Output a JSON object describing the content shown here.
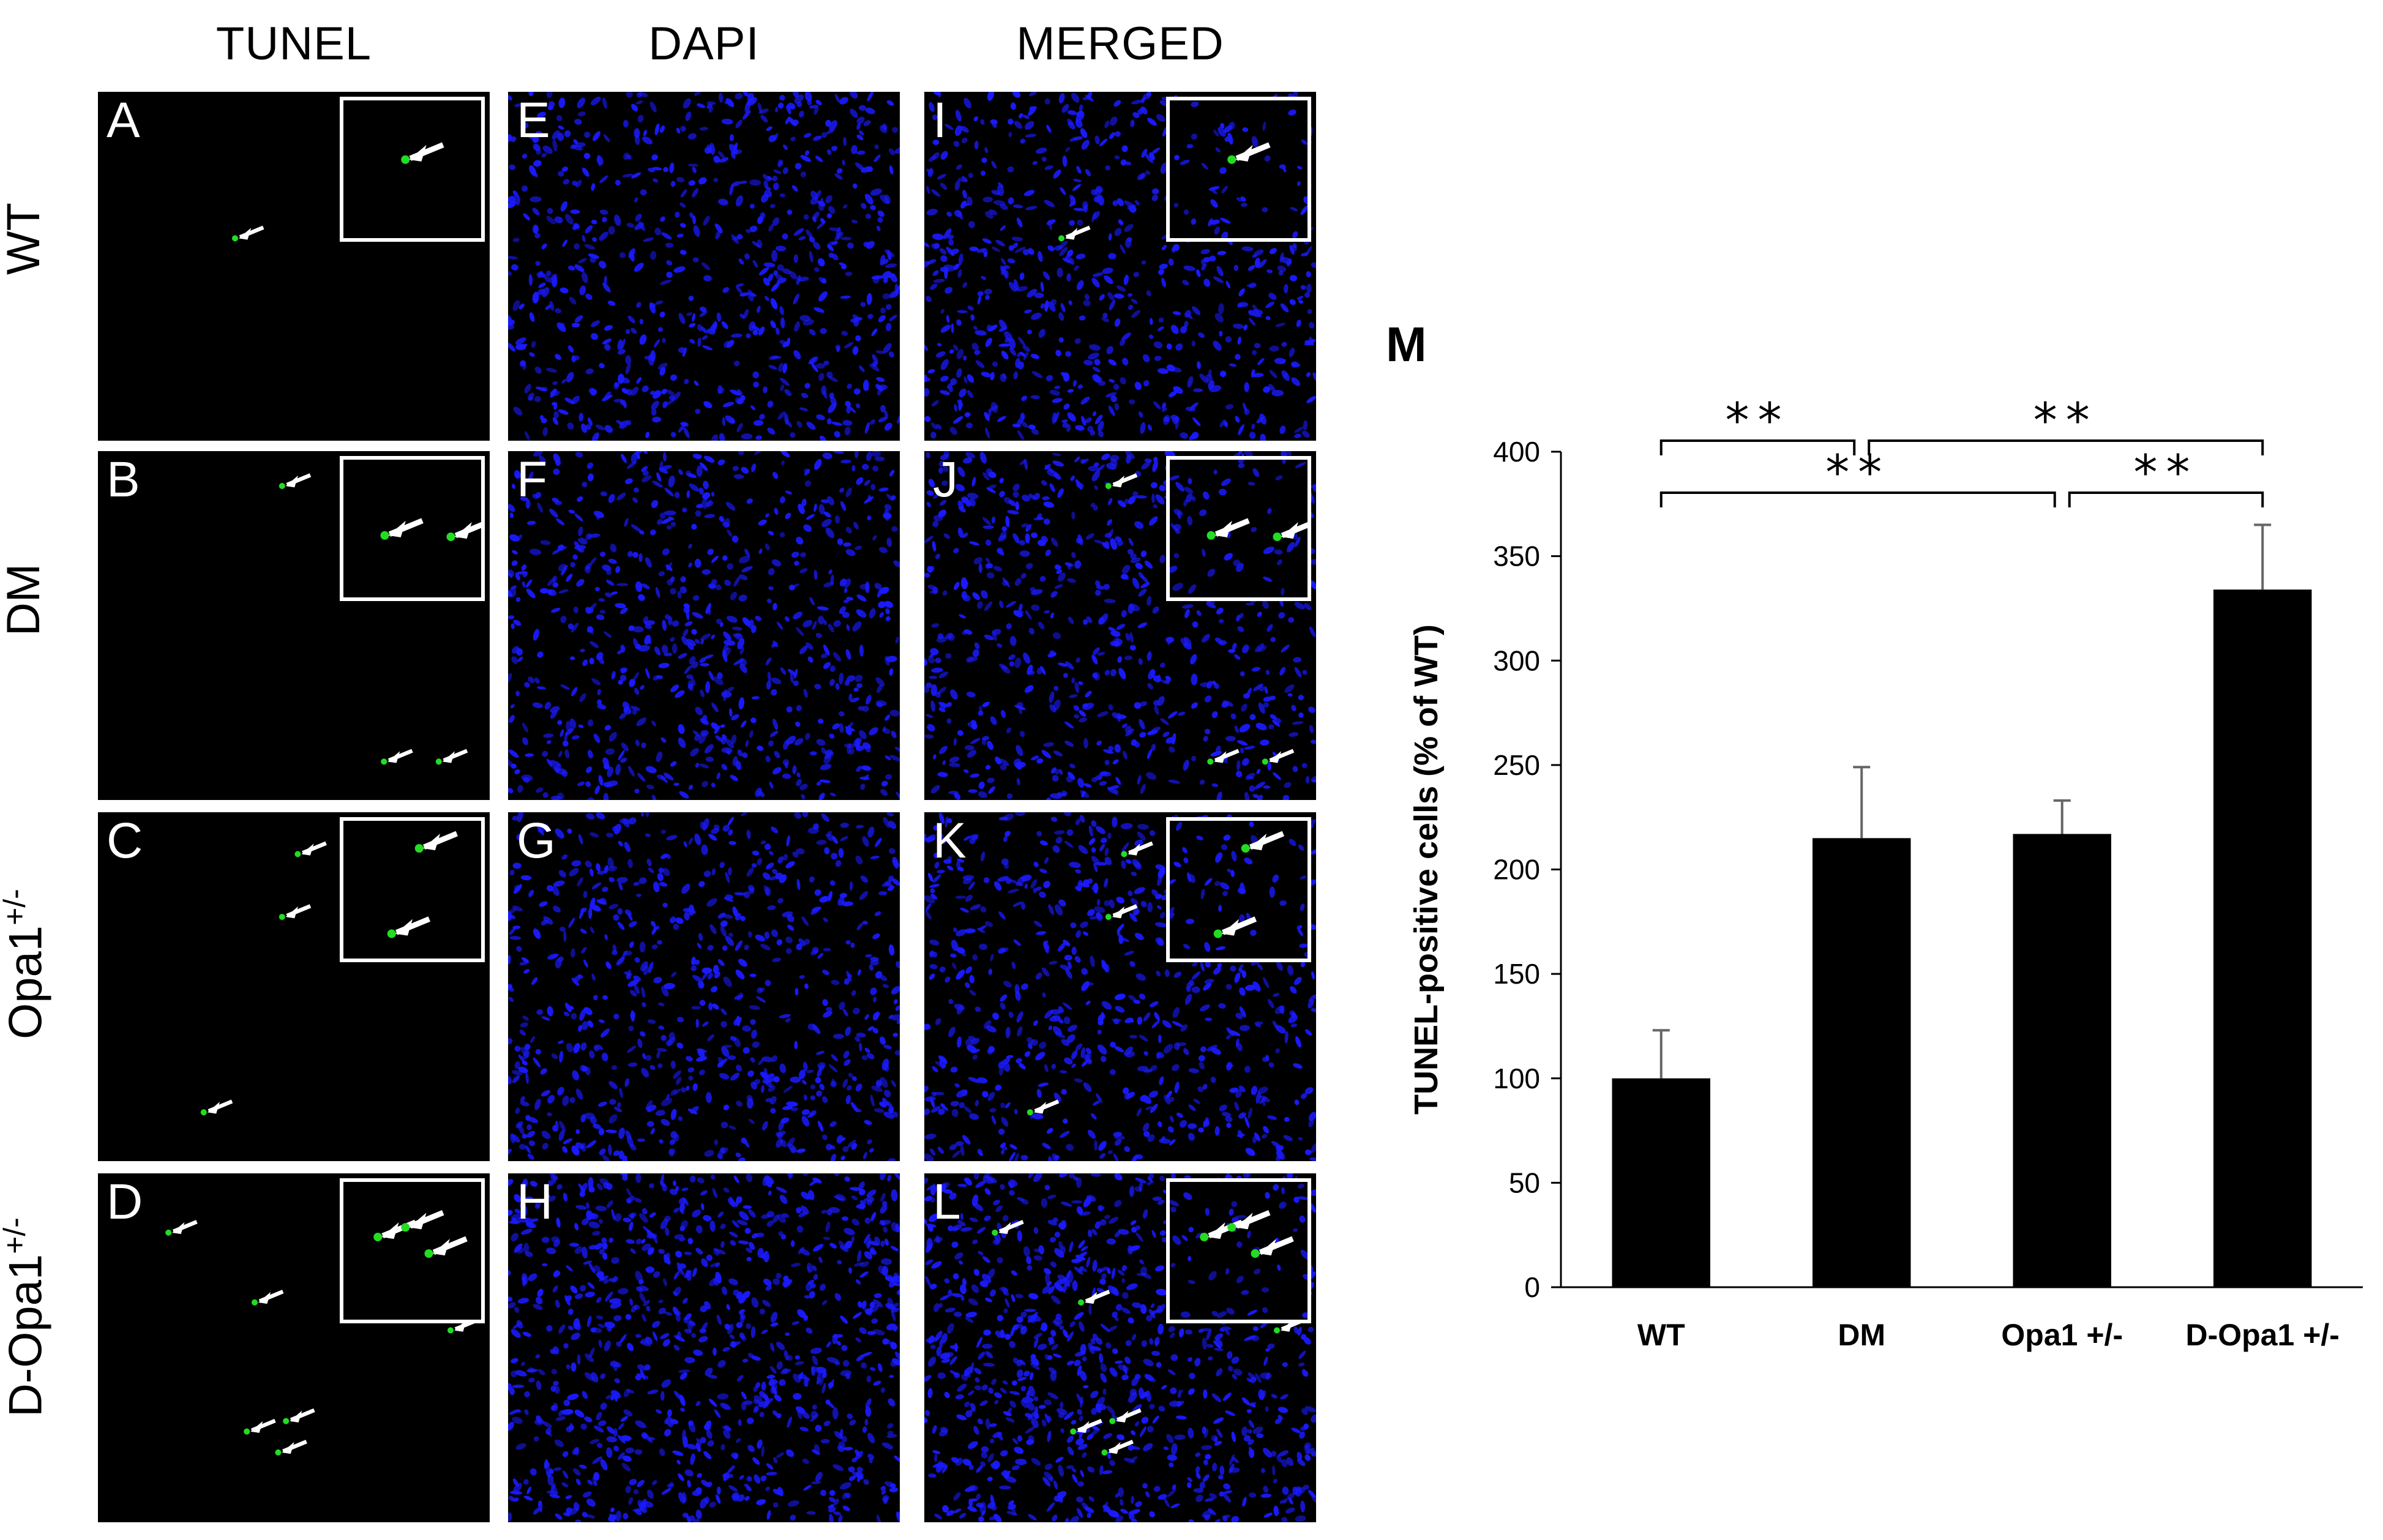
{
  "columns": [
    "TUNEL",
    "DAPI",
    "MERGED"
  ],
  "rows": [
    {
      "label": "WT",
      "sup": ""
    },
    {
      "label": "DM",
      "sup": ""
    },
    {
      "label": "Opa1",
      "sup": "+/-"
    },
    {
      "label": "D-Opa1",
      "sup": "+/-"
    }
  ],
  "panel_letters": [
    "A",
    "E",
    "I",
    "B",
    "F",
    "J",
    "C",
    "G",
    "K",
    "D",
    "H",
    "L"
  ],
  "colors": {
    "dapi": "#1a1aff",
    "tunel": "#22dd22",
    "background": "#000000",
    "arrow": "#ffffff",
    "bar": "#000000"
  },
  "chart_data": {
    "panel_label": "M",
    "type": "bar",
    "categories": [
      "WT",
      "DM",
      "Opa1 +/-",
      "D-Opa1 +/-"
    ],
    "values": [
      100,
      215,
      217,
      334
    ],
    "errors": [
      23,
      34,
      16,
      31
    ],
    "ylabel": "TUNEL-positive cells (% of WT)",
    "xlabel": "",
    "ylim": [
      0,
      400
    ],
    "yticks": [
      0,
      50,
      100,
      150,
      200,
      250,
      300,
      350,
      400
    ],
    "significance": [
      {
        "from": 0,
        "to": 1,
        "label": "**"
      },
      {
        "from": 1,
        "to": 3,
        "label": "**"
      },
      {
        "from": 0,
        "to": 2,
        "label": "**"
      },
      {
        "from": 2,
        "to": 3,
        "label": "**"
      }
    ]
  }
}
